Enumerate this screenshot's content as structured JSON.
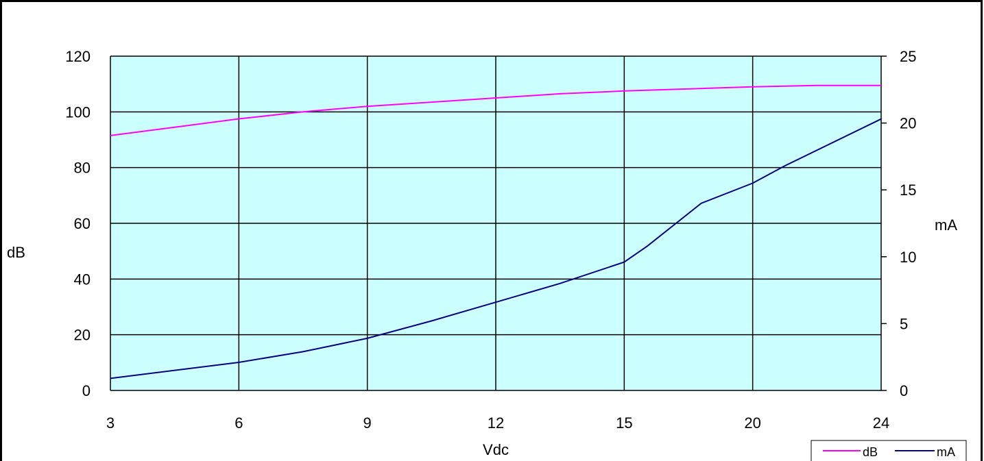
{
  "chart_data": {
    "type": "line",
    "x_tick_labels": [
      "3",
      "6",
      "9",
      "12",
      "15",
      "20",
      "24"
    ],
    "xlabel": "Vdc",
    "ylabel_left": "dB",
    "ylabel_right": "mA",
    "ylim_left": [
      0,
      120
    ],
    "ylim_right": [
      0,
      25
    ],
    "yticks_left": [
      "0",
      "20",
      "40",
      "60",
      "80",
      "100",
      "120"
    ],
    "yticks_right": [
      "0",
      "5",
      "10",
      "15",
      "20",
      "25"
    ],
    "grid": true,
    "legend_position": "bottom-right",
    "series": [
      {
        "name": "dB",
        "axis": "left",
        "color": "#ff00ff",
        "points": [
          {
            "x": 3,
            "y": 91.5
          },
          {
            "x": 4.5,
            "y": 94.5
          },
          {
            "x": 6,
            "y": 97.5
          },
          {
            "x": 7.5,
            "y": 100
          },
          {
            "x": 9,
            "y": 102
          },
          {
            "x": 10.5,
            "y": 103.5
          },
          {
            "x": 12,
            "y": 105
          },
          {
            "x": 13.5,
            "y": 106.5
          },
          {
            "x": 15,
            "y": 107.5
          },
          {
            "x": 20,
            "y": 109
          },
          {
            "x": 22,
            "y": 109.5
          },
          {
            "x": 24,
            "y": 109.5
          }
        ]
      },
      {
        "name": "mA",
        "axis": "right",
        "color": "#000080",
        "points": [
          {
            "x": 3,
            "y": 0.9
          },
          {
            "x": 6,
            "y": 2.1
          },
          {
            "x": 7.5,
            "y": 2.9
          },
          {
            "x": 9,
            "y": 3.9
          },
          {
            "x": 10.5,
            "y": 5.2
          },
          {
            "x": 12,
            "y": 6.6
          },
          {
            "x": 13.5,
            "y": 8
          },
          {
            "x": 15,
            "y": 9.6
          },
          {
            "x": 15.9,
            "y": 10.8
          },
          {
            "x": 18,
            "y": 14
          },
          {
            "x": 20,
            "y": 15.5
          },
          {
            "x": 21,
            "y": 16.8
          },
          {
            "x": 24,
            "y": 20.3
          }
        ]
      }
    ]
  }
}
